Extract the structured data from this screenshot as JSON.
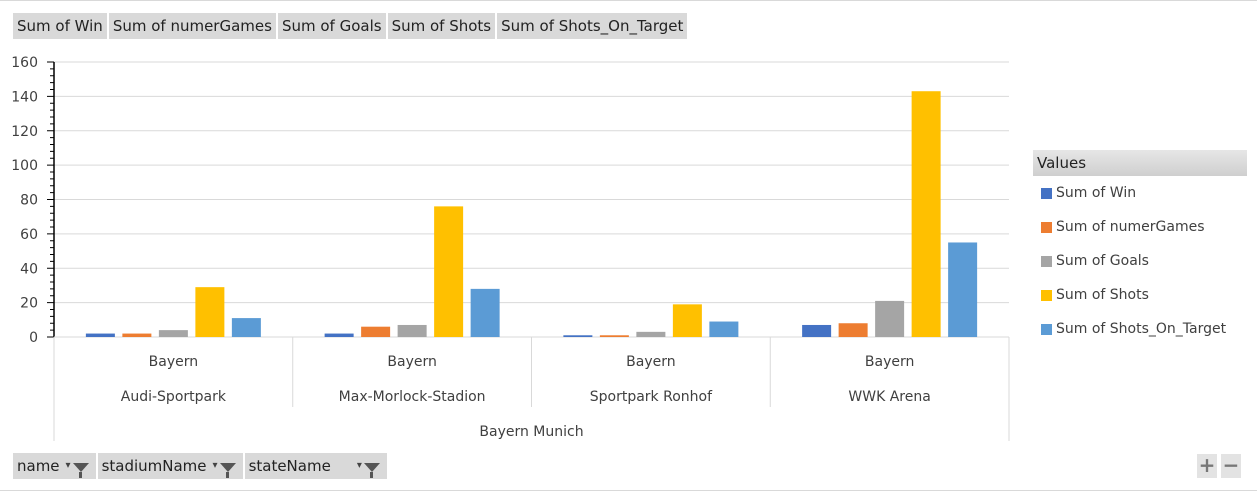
{
  "value_buttons": [
    "Sum of Win",
    "Sum of numerGames",
    "Sum of Goals",
    "Sum of Shots",
    "Sum of Shots_On_Target"
  ],
  "axis_buttons": [
    "name",
    "stadiumName",
    "stateName"
  ],
  "legend": {
    "title": "Values"
  },
  "zoom": {
    "plus": "+",
    "minus": "−"
  },
  "chart_data": {
    "type": "bar",
    "categories": [
      "Audi-Sportpark",
      "Max-Morlock-Stadion",
      "Sportpark Ronhof",
      "WWK Arena"
    ],
    "category_group_level2": [
      "Bayern",
      "Bayern",
      "Bayern",
      "Bayern"
    ],
    "category_group_level3": "Bayern Munich",
    "ylim": [
      0,
      160
    ],
    "yticks": [
      0,
      20,
      40,
      60,
      80,
      100,
      120,
      140,
      160
    ],
    "grid": true,
    "legend_position": "right",
    "series": [
      {
        "name": "Sum of Win",
        "color": "#4472c4",
        "values": [
          2,
          2,
          1,
          7
        ]
      },
      {
        "name": "Sum of numerGames",
        "color": "#ed7d31",
        "values": [
          2,
          6,
          1,
          8
        ]
      },
      {
        "name": "Sum of Goals",
        "color": "#a5a5a5",
        "values": [
          4,
          7,
          3,
          21
        ]
      },
      {
        "name": "Sum of Shots",
        "color": "#ffc000",
        "values": [
          29,
          76,
          19,
          143
        ]
      },
      {
        "name": "Sum of Shots_On_Target",
        "color": "#5b9bd5",
        "values": [
          11,
          28,
          9,
          55
        ]
      }
    ]
  }
}
